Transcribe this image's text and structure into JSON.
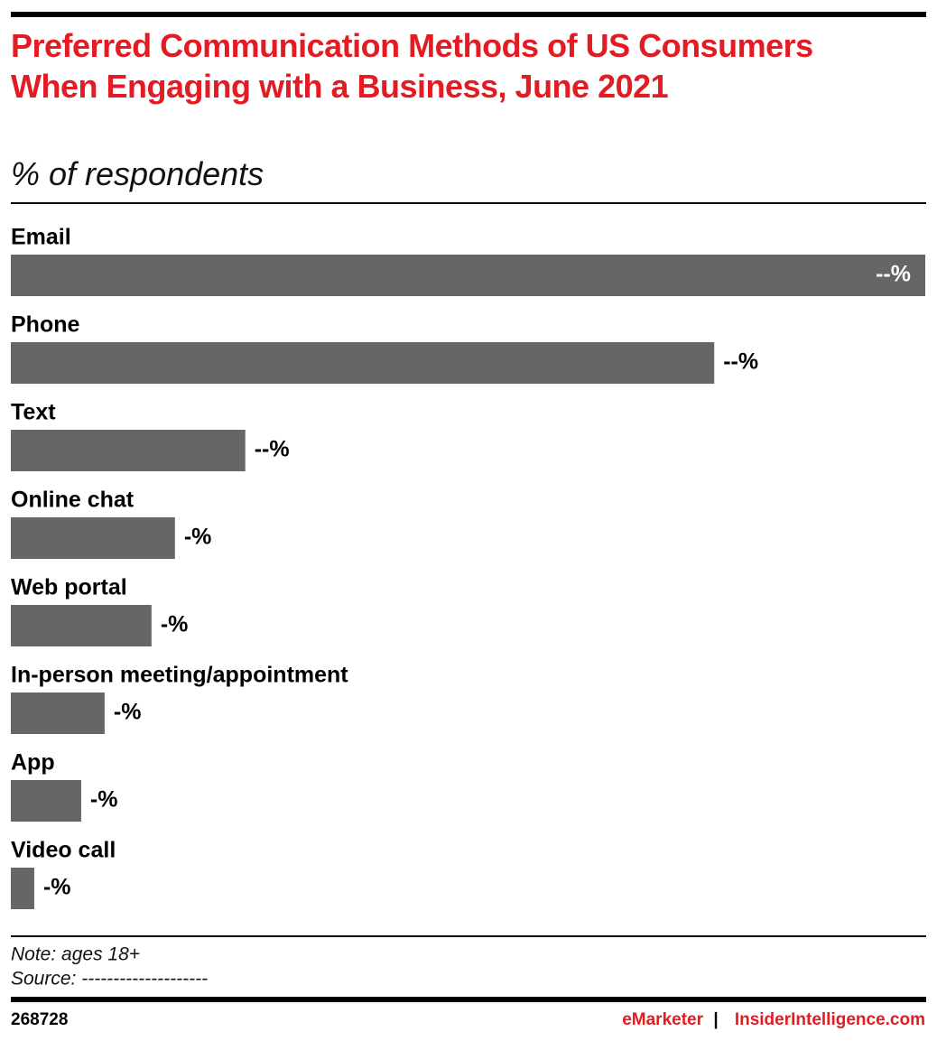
{
  "chart_data": {
    "type": "bar",
    "orientation": "horizontal",
    "title": "Preferred Communication Methods of US Consumers When Engaging with a Business, June 2021",
    "subtitle": "% of respondents",
    "categories": [
      "Email",
      "Phone",
      "Text",
      "Online chat",
      "Web portal",
      "In-person meeting/appointment",
      "App",
      "Video call"
    ],
    "values": [
      39,
      30,
      10,
      7,
      6,
      4,
      3,
      1
    ],
    "value_labels": [
      "--%",
      "--%",
      "--%",
      "-%",
      "-%",
      "-%",
      "-%",
      "-%"
    ],
    "color": "#666666",
    "note": "Note: ages 18+",
    "source": "Source: --------------------",
    "chart_id": "268728",
    "brand": "eMarketer",
    "separator": "|",
    "site": "InsiderIntelligence.com"
  }
}
